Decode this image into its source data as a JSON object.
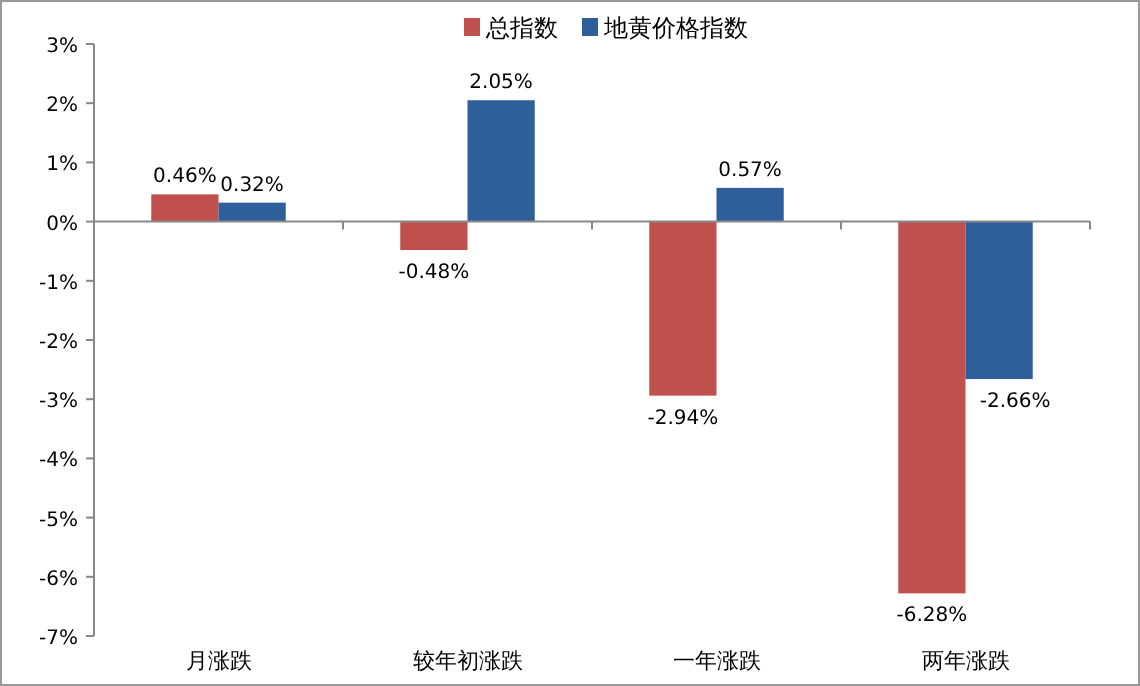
{
  "chart_data": {
    "type": "bar",
    "categories": [
      "月涨跌",
      "较年初涨跌",
      "一年涨跌",
      "两年涨跌"
    ],
    "series": [
      {
        "name": "总指数",
        "color": "#c0504d",
        "values": [
          0.46,
          -0.48,
          -2.94,
          -6.28
        ],
        "value_labels": [
          "0.46%",
          "-0.48%",
          "-2.94%",
          "-6.28%"
        ]
      },
      {
        "name": "地黄价格指数",
        "color": "#2e5f9a",
        "values": [
          0.32,
          2.05,
          0.57,
          -2.66
        ],
        "value_labels": [
          "0.32%",
          "2.05%",
          "0.57%",
          "-2.66%"
        ]
      }
    ],
    "ylim": [
      -7,
      3
    ],
    "yticks": [
      {
        "value": 3,
        "label": "3%"
      },
      {
        "value": 2,
        "label": "2%"
      },
      {
        "value": 1,
        "label": "1%"
      },
      {
        "value": 0,
        "label": "0%"
      },
      {
        "value": -1,
        "label": "-1%"
      },
      {
        "value": -2,
        "label": "-2%"
      },
      {
        "value": -3,
        "label": "-3%"
      },
      {
        "value": -4,
        "label": "-4%"
      },
      {
        "value": -5,
        "label": "-5%"
      },
      {
        "value": -6,
        "label": "-6%"
      },
      {
        "value": -7,
        "label": "-7%"
      }
    ],
    "legend": "top"
  }
}
